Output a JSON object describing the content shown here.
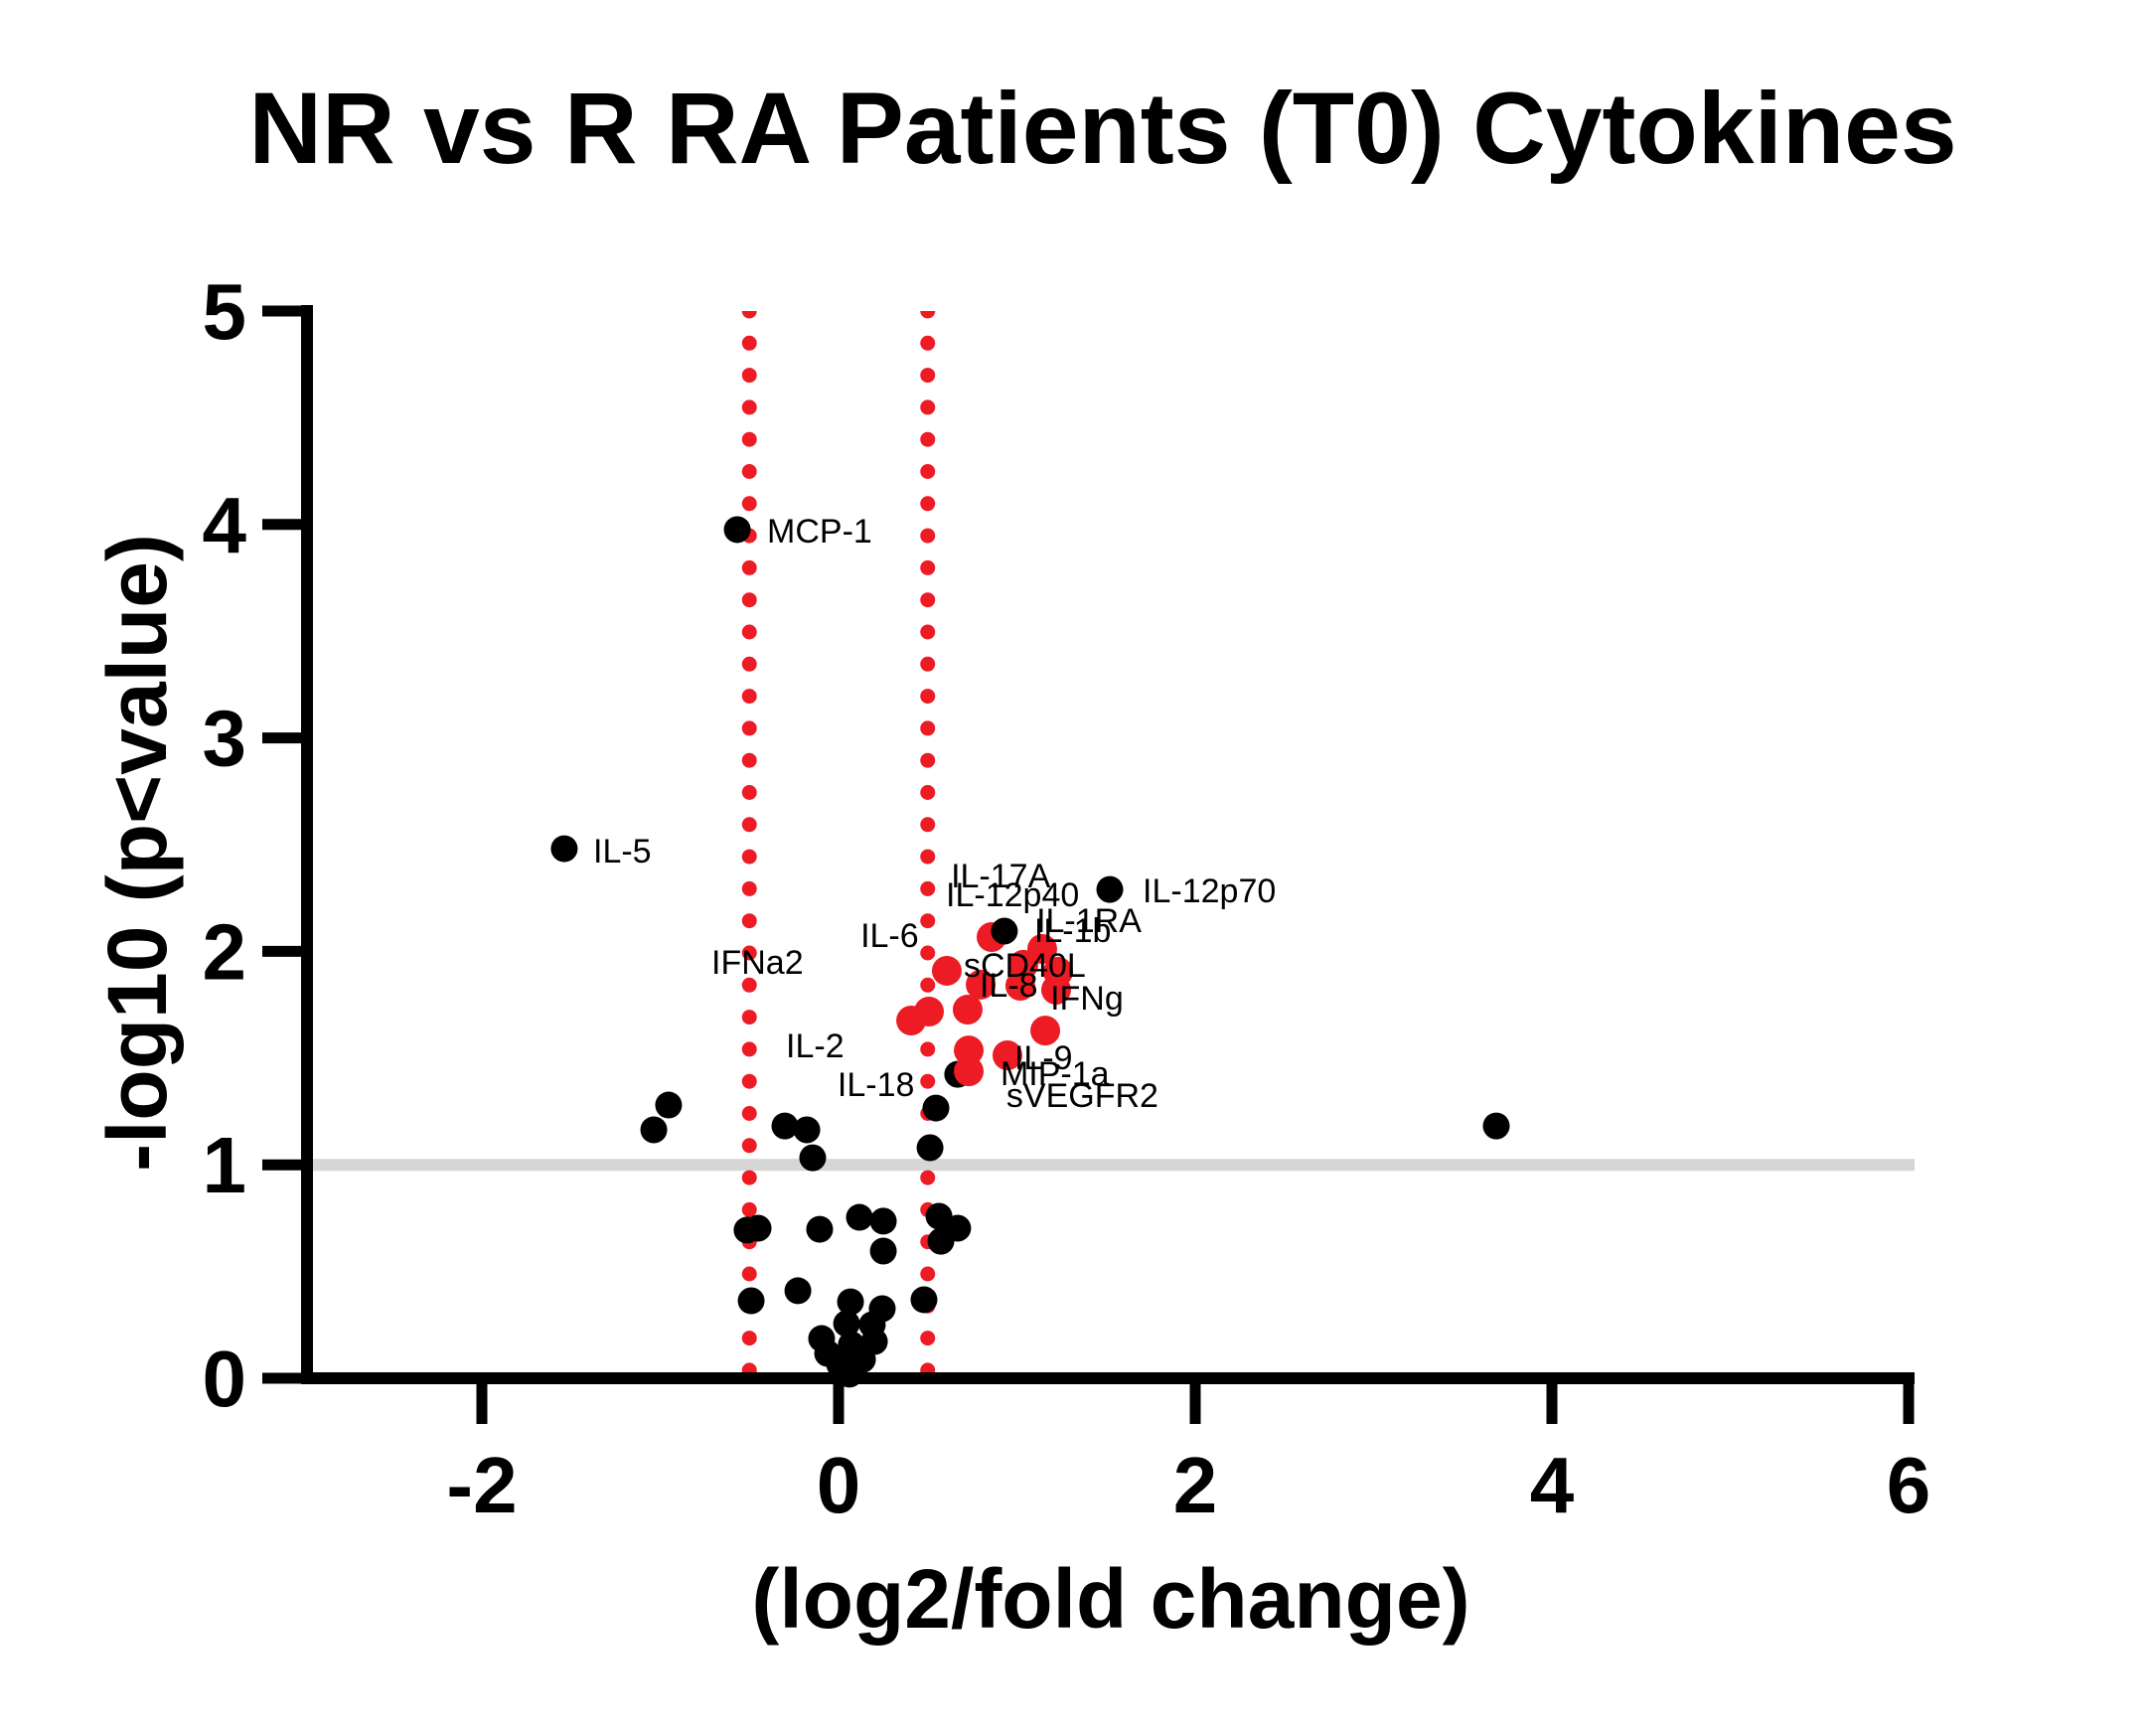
{
  "chart_data": {
    "type": "scatter",
    "title": "NR vs R RA Patients (T0) Cytokines",
    "xlabel": "(log2/fold change)",
    "ylabel": "-log10 (p<value)",
    "xlim": [
      -2.98,
      6.03
    ],
    "ylim": [
      0,
      5
    ],
    "xticks": [
      -2,
      0,
      2,
      4,
      6
    ],
    "yticks": [
      0,
      1,
      2,
      3,
      4,
      5
    ],
    "grid": false,
    "legend": "none",
    "colors": {
      "point_black": "#000000",
      "point_red": "#ed1c24",
      "fold_change_line_red": "#ed1c24",
      "significance_line_gray": "#d6d6d6"
    },
    "threshold_lines": {
      "horizontal_y": 1.0,
      "horizontal_style": "solid-gray",
      "vertical_x": [
        -0.5,
        0.5
      ],
      "vertical_style": "dotted-red"
    },
    "series": [
      {
        "name": "significant-red-behind",
        "color": "#ed1c24",
        "marker_radius": 15,
        "points": [
          [
            0.858,
            2.067
          ]
        ]
      },
      {
        "name": "black-points",
        "color": "#000000",
        "marker_radius": 13.5,
        "points": [
          [
            -0.568,
            3.976
          ],
          [
            -1.538,
            2.481
          ],
          [
            1.521,
            2.29
          ],
          [
            0.93,
            2.095
          ],
          [
            -0.953,
            1.28
          ],
          [
            -1.036,
            1.164
          ],
          [
            -0.301,
            1.182
          ],
          [
            -0.178,
            1.164
          ],
          [
            -0.145,
            1.033
          ],
          [
            0.546,
            1.266
          ],
          [
            0.513,
            1.08
          ],
          [
            3.688,
            1.182
          ],
          [
            0.668,
            1.424
          ],
          [
            -0.513,
            0.694
          ],
          [
            -0.451,
            0.703
          ],
          [
            -0.106,
            0.698
          ],
          [
            0.117,
            0.754
          ],
          [
            0.251,
            0.736
          ],
          [
            0.251,
            0.596
          ],
          [
            0.563,
            0.759
          ],
          [
            0.574,
            0.642
          ],
          [
            0.668,
            0.703
          ],
          [
            -0.49,
            0.363
          ],
          [
            -0.228,
            0.41
          ],
          [
            0.067,
            0.358
          ],
          [
            0.245,
            0.326
          ],
          [
            0.479,
            0.368
          ],
          [
            -0.095,
            0.186
          ],
          [
            0.045,
            0.256
          ],
          [
            0.189,
            0.251
          ],
          [
            -0.061,
            0.116
          ],
          [
            0.072,
            0.158
          ],
          [
            0.006,
            0.065
          ],
          [
            0.134,
            0.088
          ],
          [
            0.061,
            0.019
          ],
          [
            0.201,
            0.172
          ]
        ]
      },
      {
        "name": "significant-red",
        "color": "#ed1c24",
        "marker_radius": 15,
        "points": [
          [
            1.142,
            2.011
          ],
          [
            0.607,
            1.909
          ],
          [
            0.797,
            1.844
          ],
          [
            1.036,
            1.937
          ],
          [
            1.231,
            1.904
          ],
          [
            1.019,
            1.839
          ],
          [
            1.22,
            1.82
          ],
          [
            0.507,
            1.718
          ],
          [
            0.407,
            1.676
          ],
          [
            0.724,
            1.727
          ],
          [
            1.159,
            1.629
          ],
          [
            0.73,
            1.536
          ],
          [
            0.947,
            1.513
          ],
          [
            0.73,
            1.438
          ]
        ]
      }
    ],
    "point_labels": [
      {
        "text": "MCP-1",
        "x": -0.401,
        "y": 3.971
      },
      {
        "text": "IL-5",
        "x": -1.376,
        "y": 2.472
      },
      {
        "text": "IL-17A",
        "x": 0.63,
        "y": 2.356
      },
      {
        "text": "IL-12p40",
        "x": 0.602,
        "y": 2.267
      },
      {
        "text": "IL-12p70",
        "x": 1.705,
        "y": 2.286
      },
      {
        "text": "IL-1RA",
        "x": 1.109,
        "y": 2.146
      },
      {
        "text": "IL-1b",
        "x": 1.097,
        "y": 2.1
      },
      {
        "text": "IL-6",
        "x": 0.123,
        "y": 2.076
      },
      {
        "text": "IFNa2",
        "x": -0.713,
        "y": 1.951
      },
      {
        "text": "sCD40L",
        "x": 0.702,
        "y": 1.937
      },
      {
        "text": "IL-8",
        "x": 0.791,
        "y": 1.844
      },
      {
        "text": "IFNg",
        "x": 1.187,
        "y": 1.783
      },
      {
        "text": "IL-2",
        "x": -0.295,
        "y": 1.56
      },
      {
        "text": "IL-18",
        "x": -0.006,
        "y": 1.378
      },
      {
        "text": "IL-9",
        "x": 0.986,
        "y": 1.504
      },
      {
        "text": "MIP-1a",
        "x": 0.908,
        "y": 1.429
      },
      {
        "text": "sVEGFR2",
        "x": 0.941,
        "y": 1.327
      }
    ]
  }
}
